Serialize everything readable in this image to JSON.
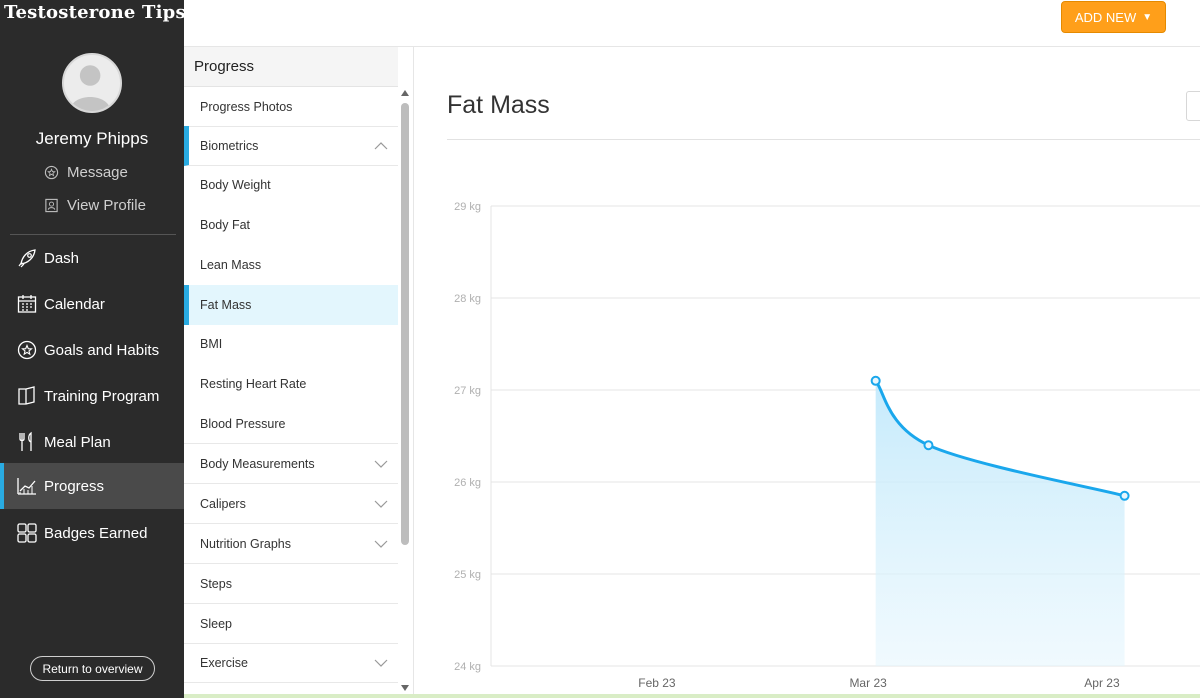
{
  "brand": "Testosterone Tips",
  "user": {
    "name": "Jeremy Phipps",
    "message_label": "Message",
    "view_profile_label": "View Profile"
  },
  "nav": [
    {
      "label": "Dash",
      "icon": "rocket-icon"
    },
    {
      "label": "Calendar",
      "icon": "calendar-icon"
    },
    {
      "label": "Goals and Habits",
      "icon": "goals-icon"
    },
    {
      "label": "Training Program",
      "icon": "book-icon"
    },
    {
      "label": "Meal Plan",
      "icon": "utensils-icon"
    },
    {
      "label": "Progress",
      "icon": "chart-icon",
      "active": true
    },
    {
      "label": "Badges Earned",
      "icon": "badges-icon"
    }
  ],
  "return_label": "Return to overview",
  "add_new_label": "ADD NEW",
  "submenu": {
    "title": "Progress",
    "items": [
      {
        "label": "Progress Photos"
      },
      {
        "label": "Biometrics",
        "expanded": true
      },
      {
        "label": "Body Weight"
      },
      {
        "label": "Body Fat"
      },
      {
        "label": "Lean Mass"
      },
      {
        "label": "Fat Mass",
        "selected": true
      },
      {
        "label": "BMI"
      },
      {
        "label": "Resting Heart Rate"
      },
      {
        "label": "Blood Pressure"
      },
      {
        "label": "Body Measurements",
        "expandable": true
      },
      {
        "label": "Calipers",
        "expandable": true
      },
      {
        "label": "Nutrition Graphs",
        "expandable": true
      },
      {
        "label": "Steps"
      },
      {
        "label": "Sleep"
      },
      {
        "label": "Exercise",
        "expandable": true
      }
    ]
  },
  "page_title": "Fat Mass",
  "colors": {
    "accent": "#29abe2",
    "line": "#1aa7ec",
    "add_button": "#ff9f1a",
    "sidebar": "#2b2b2b"
  },
  "chart_data": {
    "type": "area",
    "title": "",
    "xlabel": "",
    "ylabel": "",
    "y_unit": "kg",
    "ylim": [
      24,
      29
    ],
    "yticks": [
      24,
      25,
      26,
      27,
      28,
      29
    ],
    "ytick_labels": [
      "24 kg",
      "25 kg",
      "26 kg",
      "27 kg",
      "28 kg",
      "29 kg"
    ],
    "xticks": [
      "2023-02-23",
      "2023-03-23",
      "2023-04-23"
    ],
    "xtick_labels": [
      "Feb 23",
      "Mar 23",
      "Apr 23"
    ],
    "xlim": [
      "2023-02-01",
      "2023-05-06"
    ],
    "grid": true,
    "legend": "none",
    "series": [
      {
        "points": [
          {
            "x": "2023-03-24",
            "y": 27.1
          },
          {
            "x": "2023-03-31",
            "y": 26.4
          },
          {
            "x": "2023-04-26",
            "y": 25.85
          }
        ]
      }
    ]
  }
}
